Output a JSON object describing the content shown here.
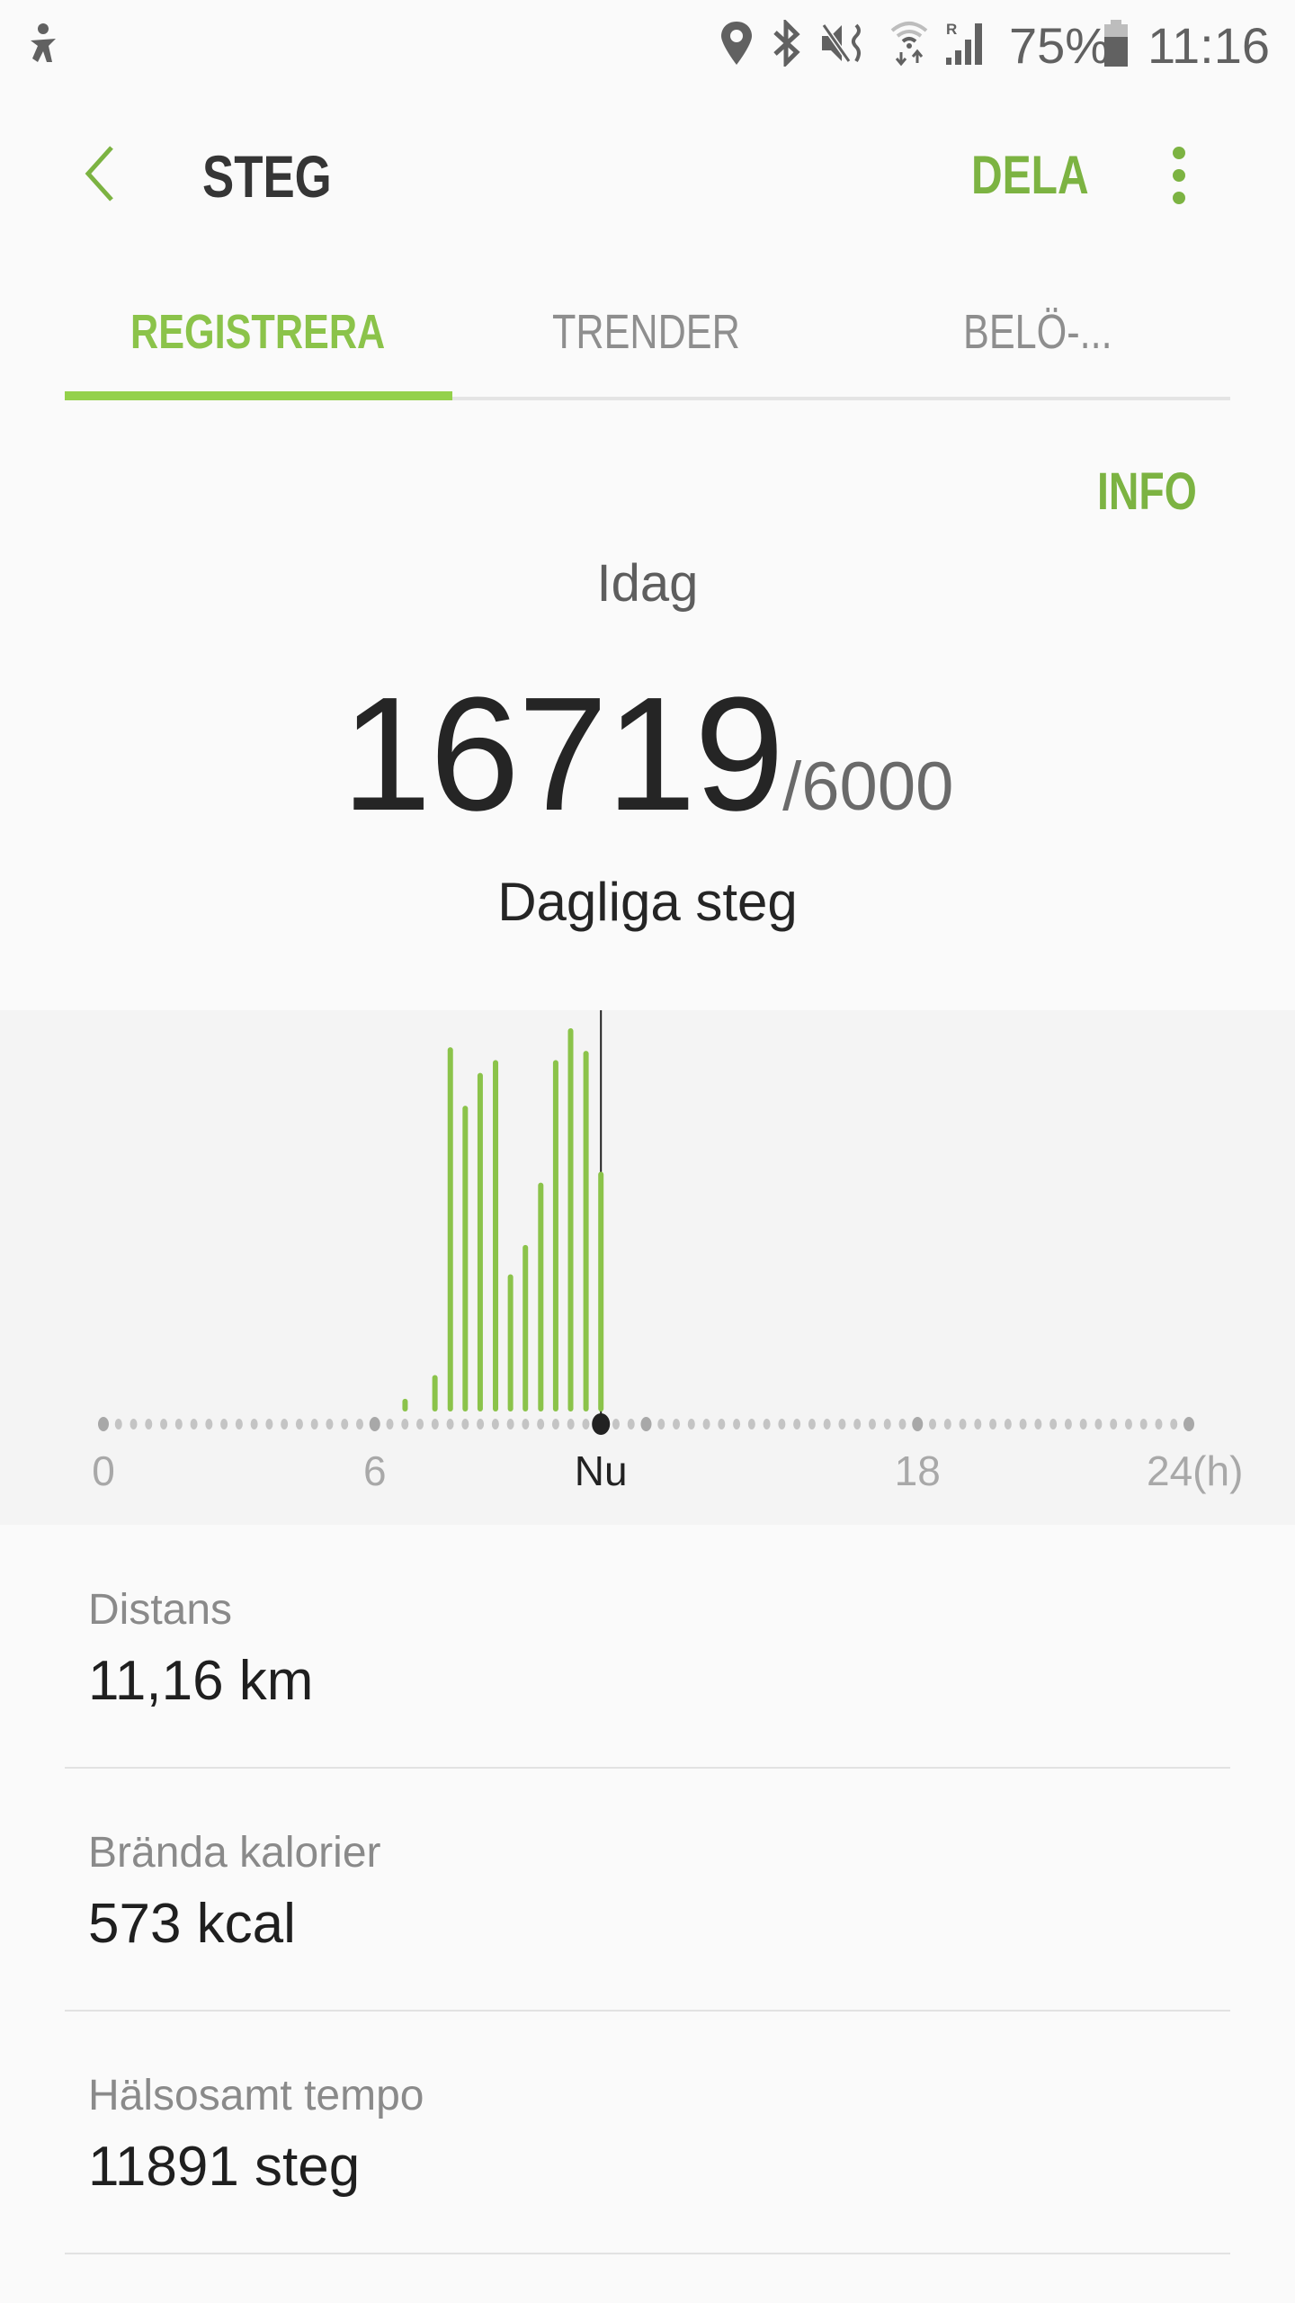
{
  "status_bar": {
    "icons": [
      "accessibility-icon",
      "location-icon",
      "bluetooth-icon",
      "mute-vibrate-icon",
      "wifi-icon",
      "signal-roaming-icon",
      "battery-icon"
    ],
    "battery": "75%",
    "time": "11:16"
  },
  "header": {
    "title": "STEG",
    "share_label": "DELA",
    "back_icon": "chevron-left-icon",
    "more_icon": "more-vertical-icon"
  },
  "tabs": [
    {
      "label": "REGISTRERA",
      "active": true
    },
    {
      "label": "TRENDER",
      "active": false
    },
    {
      "label": "BELÖ-...",
      "active": false
    }
  ],
  "info_label": "INFO",
  "summary": {
    "day": "Idag",
    "steps": "16719",
    "goal": "/6000",
    "caption": "Dagliga steg"
  },
  "colors": {
    "accent": "#8bc34a",
    "accent_text": "#7cb342",
    "text": "#252525"
  },
  "chart_data": {
    "type": "bar",
    "x_unit": "h",
    "xlim": [
      0,
      24
    ],
    "bin_minutes": 20,
    "x": [
      6.67,
      7.33,
      7.67,
      8.0,
      8.33,
      8.67,
      9.0,
      9.33,
      9.67,
      10.0,
      10.33,
      10.67,
      11.0
    ],
    "values": [
      38,
      162,
      1871,
      1566,
      1737,
      1804,
      687,
      840,
      1165,
      1804,
      1970,
      1852,
      1222
    ],
    "now": 11.0,
    "tick_labels": [
      {
        "value": 0,
        "label": "0"
      },
      {
        "value": 6,
        "label": "6"
      },
      {
        "value": 11,
        "label": "Nu"
      },
      {
        "value": 18,
        "label": "18"
      },
      {
        "value": 24,
        "label": "24(h)"
      }
    ]
  },
  "stats": [
    {
      "label": "Distans",
      "value": "11,16 km"
    },
    {
      "label": "Brända kalorier",
      "value": "573 kcal"
    },
    {
      "label": "Hälsosamt tempo",
      "value": "11891 steg"
    }
  ]
}
